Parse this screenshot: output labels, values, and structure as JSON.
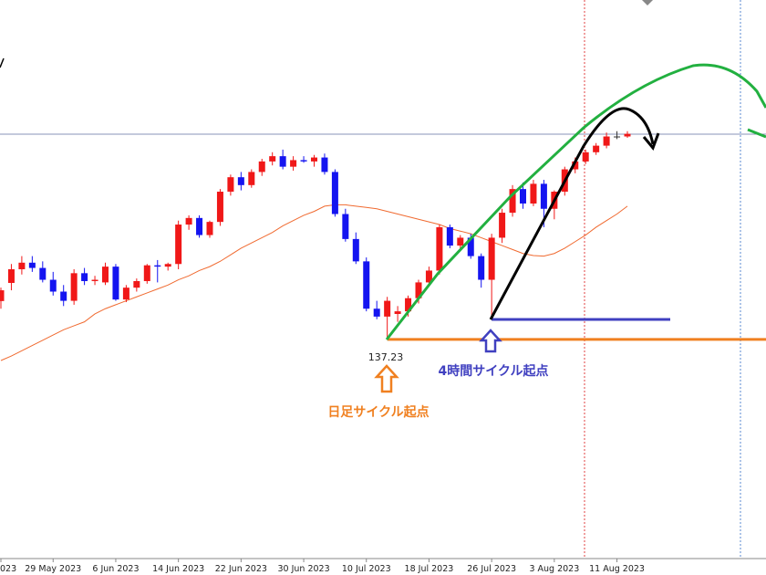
{
  "chart_data": {
    "type": "candlestick",
    "x": [
      "023",
      null,
      null,
      null,
      null,
      "29 May 2023",
      null,
      null,
      null,
      null,
      null,
      "6 Jun 2023",
      null,
      null,
      null,
      null,
      null,
      "14 Jun 2023",
      null,
      null,
      null,
      null,
      null,
      "22 Jun 2023",
      null,
      null,
      null,
      null,
      null,
      "30 Jun 2023",
      null,
      null,
      null,
      null,
      null,
      "10 Jul 2023",
      null,
      null,
      null,
      null,
      null,
      "18 Jul 2023",
      null,
      null,
      null,
      null,
      null,
      "26 Jul 2023",
      null,
      null,
      null,
      null,
      null,
      "3 Aug 2023",
      null,
      null,
      null,
      null,
      null,
      "11 Aug 2023",
      null
    ],
    "open": [
      138.69,
      139.38,
      139.9,
      140.15,
      139.95,
      139.5,
      139.05,
      138.7,
      139.75,
      139.45,
      139.4,
      140.0,
      138.75,
      139.2,
      139.45,
      140.05,
      140.0,
      140.1,
      141.6,
      141.85,
      141.2,
      141.7,
      142.85,
      143.4,
      143.1,
      143.6,
      144.0,
      144.2,
      143.8,
      144.05,
      144.0,
      144.15,
      143.6,
      142.0,
      141.05,
      140.2,
      138.4,
      138.1,
      138.2,
      138.3,
      138.8,
      139.4,
      139.85,
      141.5,
      140.8,
      141.1,
      140.4,
      139.5,
      141.1,
      142.05,
      142.95,
      142.4,
      143.15,
      142.2,
      142.85,
      143.7,
      144.0,
      144.35,
      144.6,
      144.95,
      144.95
    ],
    "high": [
      139.2,
      140.1,
      140.4,
      140.4,
      140.2,
      139.8,
      139.3,
      139.9,
      139.95,
      139.65,
      140.15,
      140.1,
      139.3,
      139.55,
      140.1,
      140.25,
      140.15,
      141.75,
      141.95,
      141.95,
      141.75,
      142.95,
      143.5,
      143.6,
      143.7,
      144.1,
      144.35,
      144.45,
      144.2,
      144.2,
      144.25,
      144.3,
      143.7,
      142.2,
      141.3,
      140.35,
      138.7,
      138.85,
      138.5,
      138.9,
      139.5,
      140.0,
      141.6,
      141.6,
      141.2,
      141.25,
      140.5,
      141.25,
      142.2,
      143.1,
      143.2,
      143.3,
      143.3,
      142.9,
      143.8,
      144.15,
      144.45,
      144.7,
      145.1,
      145.15,
      145.15
    ],
    "low": [
      138.4,
      139.1,
      139.7,
      139.8,
      139.4,
      138.9,
      138.5,
      138.55,
      139.3,
      139.3,
      139.3,
      138.7,
      138.65,
      139.05,
      139.35,
      139.4,
      139.85,
      139.9,
      141.4,
      141.1,
      141.1,
      141.55,
      142.7,
      142.9,
      143.0,
      143.45,
      143.85,
      143.7,
      143.65,
      143.95,
      143.8,
      143.5,
      141.9,
      140.95,
      140.1,
      138.3,
      138.0,
      137.23,
      137.9,
      138.1,
      138.6,
      139.3,
      139.7,
      140.7,
      140.6,
      140.3,
      139.2,
      137.99,
      140.9,
      141.9,
      142.2,
      142.3,
      141.5,
      141.8,
      142.7,
      143.55,
      143.9,
      144.25,
      144.5,
      144.85,
      144.9
    ],
    "close": [
      139.1,
      139.9,
      140.15,
      139.95,
      139.5,
      139.05,
      138.7,
      139.75,
      139.45,
      139.5,
      140.0,
      138.75,
      139.2,
      139.45,
      140.05,
      140.0,
      140.1,
      141.6,
      141.85,
      141.2,
      141.7,
      142.85,
      143.4,
      143.1,
      143.6,
      144.0,
      144.2,
      143.8,
      144.05,
      144.0,
      144.15,
      143.6,
      142.0,
      141.05,
      140.2,
      138.4,
      138.1,
      138.7,
      138.3,
      138.8,
      139.4,
      139.85,
      141.5,
      140.8,
      141.1,
      140.4,
      139.5,
      141.1,
      142.05,
      142.95,
      142.4,
      143.15,
      142.2,
      142.85,
      143.7,
      144.0,
      144.35,
      144.6,
      144.95,
      144.95,
      145.05
    ],
    "up_color": "#f01818",
    "down_color": "#1414f0",
    "ma": {
      "color": "#f06a30",
      "values": [
        136.43,
        136.6,
        136.8,
        137.0,
        137.2,
        137.4,
        137.6,
        137.75,
        137.9,
        138.2,
        138.4,
        138.55,
        138.7,
        138.85,
        139.0,
        139.15,
        139.3,
        139.5,
        139.65,
        139.85,
        140.0,
        140.2,
        140.45,
        140.7,
        140.9,
        141.1,
        141.3,
        141.55,
        141.75,
        141.95,
        142.1,
        142.3,
        142.35,
        142.35,
        142.3,
        142.25,
        142.2,
        142.1,
        142.0,
        141.9,
        141.8,
        141.7,
        141.6,
        141.45,
        141.35,
        141.25,
        141.1,
        140.95,
        140.8,
        140.65,
        140.5,
        140.42,
        140.4,
        140.5,
        140.7,
        140.95,
        141.2,
        141.5,
        141.75,
        142.0,
        142.3
      ]
    },
    "ylim": [
      129.14,
      150.14
    ],
    "annotations": {
      "low_price": "137.23",
      "daily_cycle": "日足サイクル起点",
      "h4_cycle": "4時間サイクル起点"
    }
  }
}
